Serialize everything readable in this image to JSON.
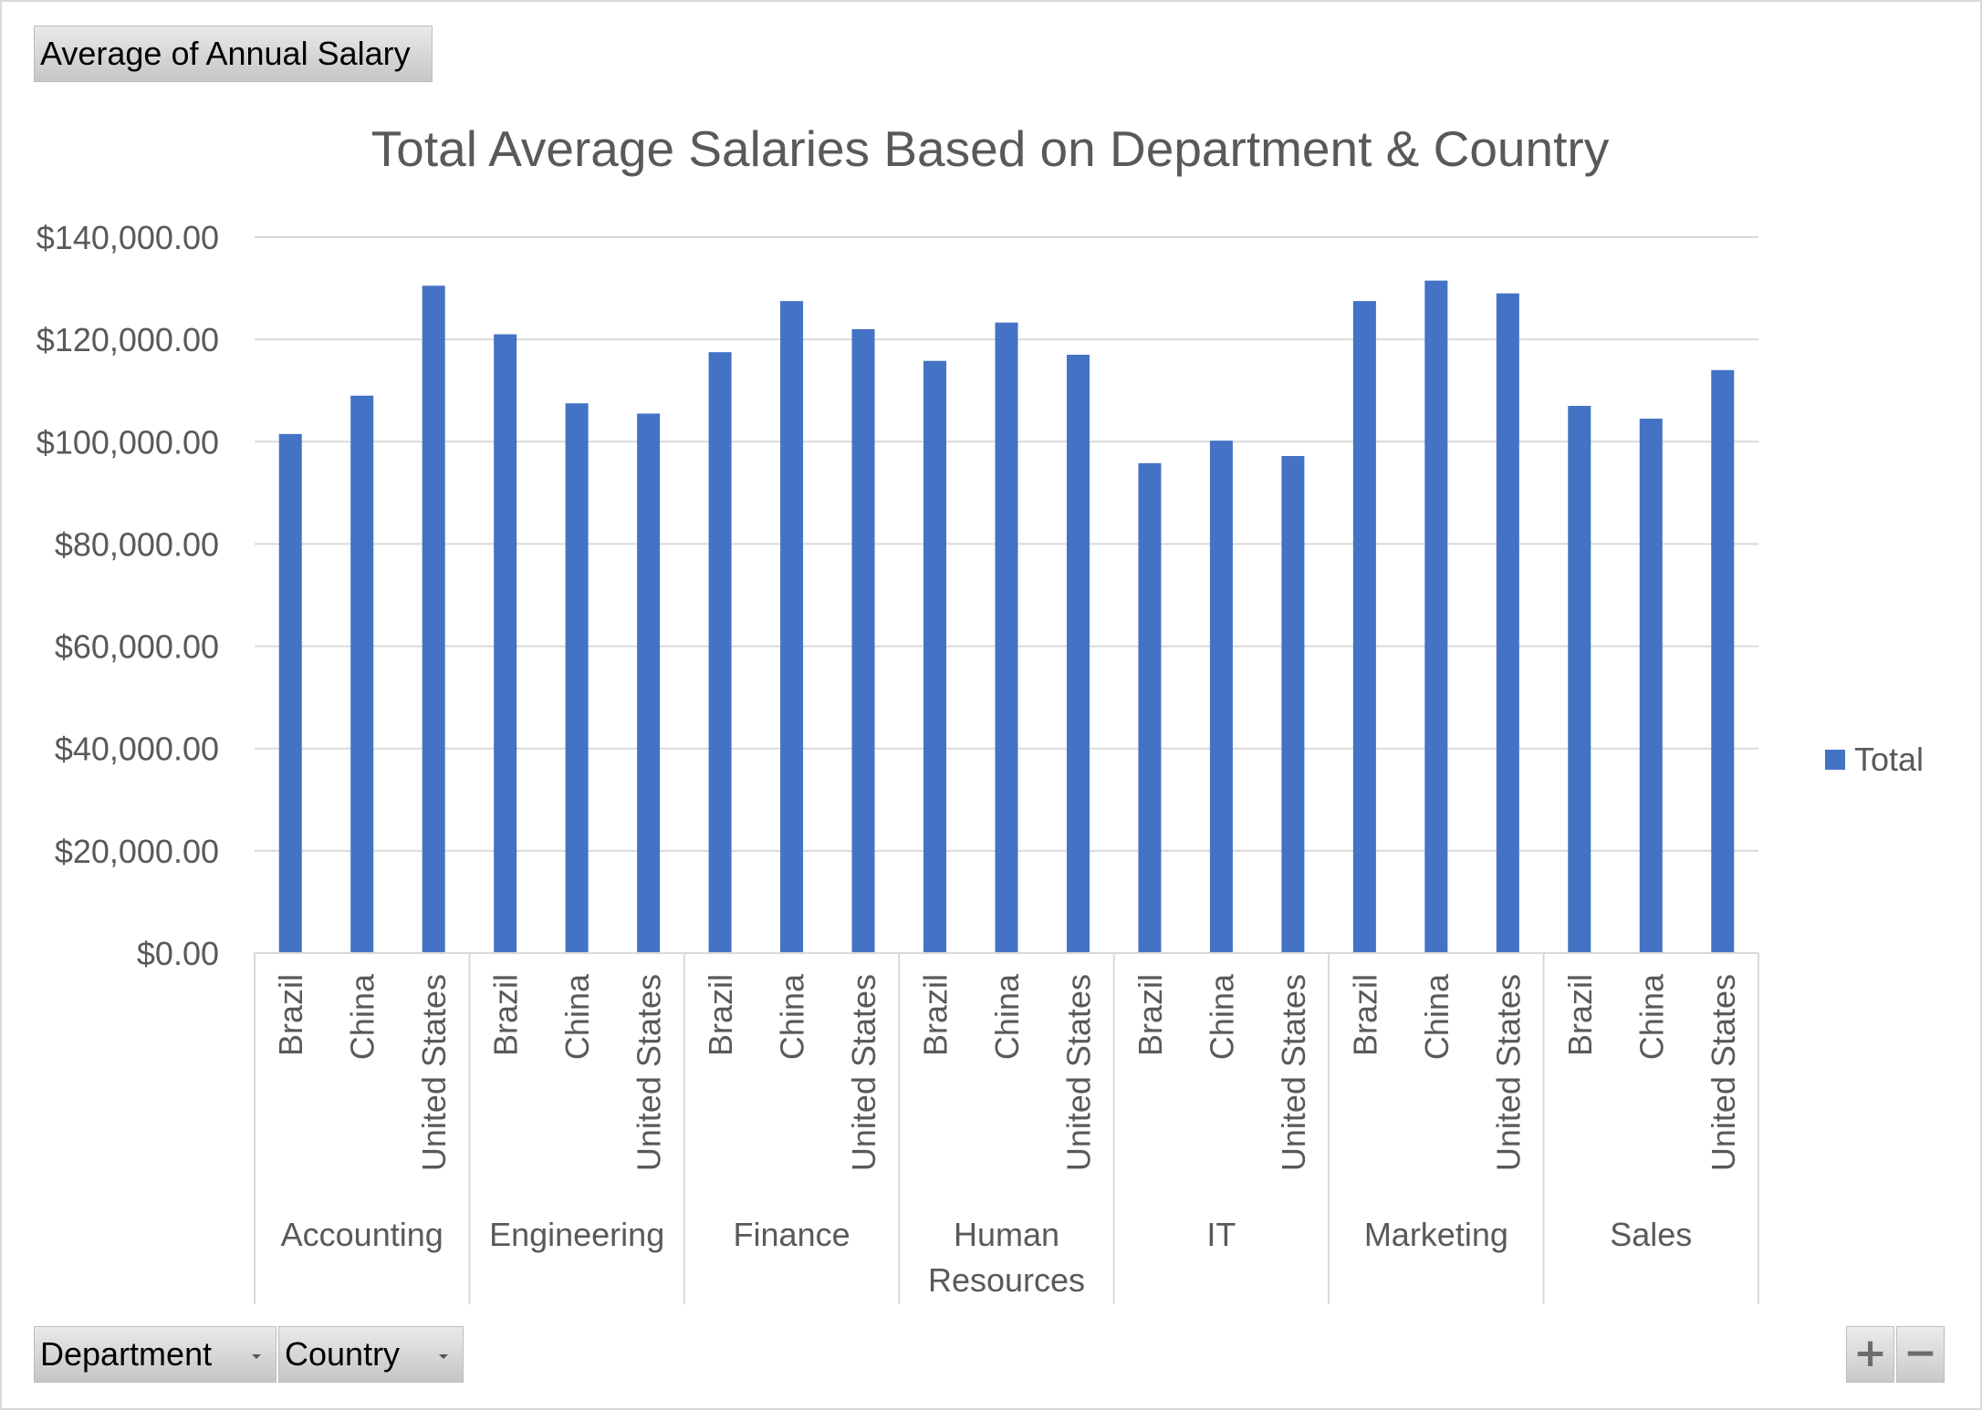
{
  "pivot": {
    "value_field": "Average of Annual Salary",
    "row_fields": [
      "Department",
      "Country"
    ],
    "zoom_in": "+",
    "zoom_out": "−"
  },
  "colors": {
    "bar": "#4472C4",
    "grid": "#d9d9d9",
    "text": "#595959"
  },
  "chart_data": {
    "type": "bar",
    "title": "Total Average Salaries Based on Department & Country",
    "xlabel": "",
    "ylabel": "",
    "ylim": [
      0,
      140000
    ],
    "y_ticks": [
      {
        "value": 0,
        "label": "$0.00"
      },
      {
        "value": 20000,
        "label": "$20,000.00"
      },
      {
        "value": 40000,
        "label": "$40,000.00"
      },
      {
        "value": 60000,
        "label": "$60,000.00"
      },
      {
        "value": 80000,
        "label": "$80,000.00"
      },
      {
        "value": 100000,
        "label": "$100,000.00"
      },
      {
        "value": 120000,
        "label": "$120,000.00"
      },
      {
        "value": 140000,
        "label": "$140,000.00"
      }
    ],
    "grid": true,
    "legend_position": "right",
    "series": [
      {
        "name": "Total"
      }
    ],
    "groups": [
      {
        "name": "Accounting",
        "items": [
          {
            "category": "Brazil",
            "value": 101500
          },
          {
            "category": "China",
            "value": 109000
          },
          {
            "category": "United States",
            "value": 130500
          }
        ]
      },
      {
        "name": "Engineering",
        "items": [
          {
            "category": "Brazil",
            "value": 121000
          },
          {
            "category": "China",
            "value": 107500
          },
          {
            "category": "United States",
            "value": 105500
          }
        ]
      },
      {
        "name": "Finance",
        "items": [
          {
            "category": "Brazil",
            "value": 117500
          },
          {
            "category": "China",
            "value": 127500
          },
          {
            "category": "United States",
            "value": 122000
          }
        ]
      },
      {
        "name": "Human Resources",
        "items": [
          {
            "category": "Brazil",
            "value": 115800
          },
          {
            "category": "China",
            "value": 123300
          },
          {
            "category": "United States",
            "value": 117000
          }
        ]
      },
      {
        "name": "IT",
        "items": [
          {
            "category": "Brazil",
            "value": 95800
          },
          {
            "category": "China",
            "value": 100200
          },
          {
            "category": "United States",
            "value": 97200
          }
        ]
      },
      {
        "name": "Marketing",
        "items": [
          {
            "category": "Brazil",
            "value": 127500
          },
          {
            "category": "China",
            "value": 131500
          },
          {
            "category": "United States",
            "value": 129000
          }
        ]
      },
      {
        "name": "Sales",
        "items": [
          {
            "category": "Brazil",
            "value": 107000
          },
          {
            "category": "China",
            "value": 104500
          },
          {
            "category": "United States",
            "value": 114000
          }
        ]
      }
    ]
  }
}
